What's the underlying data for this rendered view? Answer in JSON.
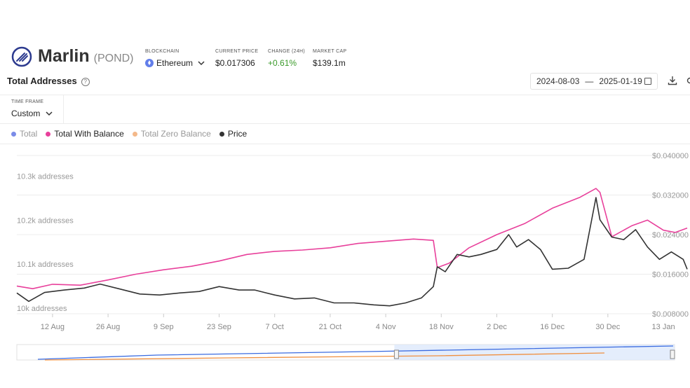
{
  "header": {
    "name": "Marlin",
    "symbol": "(POND)",
    "blockchain_label": "BLOCKCHAIN",
    "blockchain_value": "Ethereum",
    "price_label": "CURRENT PRICE",
    "price_value": "$0.017306",
    "change_label": "CHANGE (24H)",
    "change_value": "+0.61%",
    "mcap_label": "MARKET CAP",
    "mcap_value": "$139.1m"
  },
  "section": {
    "title": "Total Addresses",
    "date_from": "2024-08-03",
    "date_sep": "—",
    "date_to": "2025-01-19"
  },
  "timeframe": {
    "label": "TIME FRAME",
    "value": "Custom"
  },
  "legend": [
    {
      "name": "Total",
      "color": "#7b8ce8",
      "muted": true
    },
    {
      "name": "Total With Balance",
      "color": "#e8409b",
      "muted": false
    },
    {
      "name": "Total Zero Balance",
      "color": "#f4b98a",
      "muted": true
    },
    {
      "name": "Price",
      "color": "#333333",
      "muted": false
    }
  ],
  "chart_data": {
    "type": "line",
    "x_tick_labels": [
      "12 Aug",
      "26 Aug",
      "9 Sep",
      "23 Sep",
      "7 Oct",
      "21 Oct",
      "4 Nov",
      "18 Nov",
      "2 Dec",
      "16 Dec",
      "30 Dec",
      "13 Jan"
    ],
    "left_axis": {
      "tick_labels": [
        "10k addresses",
        "10.1k addresses",
        "10.2k addresses",
        "10.3k addresses"
      ],
      "values": [
        10000,
        10100,
        10200,
        10300
      ],
      "range": [
        10000,
        10360
      ]
    },
    "right_axis": {
      "tick_labels": [
        "$0.008000",
        "$0.016000",
        "$0.024000",
        "$0.032000",
        "$0.040000"
      ],
      "values": [
        0.008,
        0.016,
        0.024,
        0.032,
        0.04
      ],
      "range": [
        0.008,
        0.04
      ]
    },
    "series": [
      {
        "name": "Total With Balance",
        "axis": "left",
        "color": "#e8409b",
        "dates": [
          "2024-08-03",
          "2024-08-07",
          "2024-08-12",
          "2024-08-19",
          "2024-08-26",
          "2024-09-02",
          "2024-09-09",
          "2024-09-16",
          "2024-09-23",
          "2024-09-30",
          "2024-10-07",
          "2024-10-14",
          "2024-10-21",
          "2024-10-28",
          "2024-11-04",
          "2024-11-11",
          "2024-11-16",
          "2024-11-17",
          "2024-11-20",
          "2024-11-25",
          "2024-12-02",
          "2024-12-09",
          "2024-12-16",
          "2024-12-23",
          "2024-12-27",
          "2024-12-28",
          "2024-12-31",
          "2025-01-05",
          "2025-01-09",
          "2025-01-13",
          "2025-01-16",
          "2025-01-19"
        ],
        "values": [
          10063,
          10057,
          10067,
          10065,
          10077,
          10090,
          10100,
          10108,
          10120,
          10135,
          10142,
          10145,
          10150,
          10160,
          10165,
          10170,
          10167,
          10105,
          10115,
          10150,
          10180,
          10205,
          10240,
          10265,
          10285,
          10276,
          10175,
          10200,
          10213,
          10190,
          10185,
          10195
        ]
      },
      {
        "name": "Price",
        "axis": "right",
        "color": "#333333",
        "dates": [
          "2024-08-03",
          "2024-08-06",
          "2024-08-10",
          "2024-08-15",
          "2024-08-20",
          "2024-08-24",
          "2024-08-29",
          "2024-09-03",
          "2024-09-08",
          "2024-09-13",
          "2024-09-18",
          "2024-09-23",
          "2024-09-28",
          "2024-10-02",
          "2024-10-07",
          "2024-10-12",
          "2024-10-17",
          "2024-10-22",
          "2024-10-27",
          "2024-11-01",
          "2024-11-05",
          "2024-11-09",
          "2024-11-13",
          "2024-11-16",
          "2024-11-17",
          "2024-11-19",
          "2024-11-22",
          "2024-11-25",
          "2024-11-28",
          "2024-12-02",
          "2024-12-05",
          "2024-12-07",
          "2024-12-10",
          "2024-12-13",
          "2024-12-16",
          "2024-12-20",
          "2024-12-24",
          "2024-12-27",
          "2024-12-28",
          "2024-12-31",
          "2025-01-03",
          "2025-01-06",
          "2025-01-09",
          "2025-01-12",
          "2025-01-15",
          "2025-01-18",
          "2025-01-19"
        ],
        "values": [
          0.0122,
          0.0105,
          0.0123,
          0.0128,
          0.0132,
          0.014,
          0.013,
          0.012,
          0.0118,
          0.0122,
          0.0125,
          0.0135,
          0.0128,
          0.0128,
          0.0118,
          0.011,
          0.0112,
          0.0102,
          0.0102,
          0.0098,
          0.0096,
          0.0102,
          0.0112,
          0.0135,
          0.0175,
          0.0165,
          0.02,
          0.0195,
          0.02,
          0.021,
          0.024,
          0.0215,
          0.023,
          0.021,
          0.017,
          0.0172,
          0.019,
          0.0315,
          0.027,
          0.0235,
          0.023,
          0.025,
          0.0215,
          0.019,
          0.0205,
          0.019,
          0.017
        ]
      }
    ],
    "navigator": {
      "x_start": "2024-01-01",
      "x_end": "2025-01-19",
      "selection": [
        "2024-08-03",
        "2025-01-19"
      ],
      "series": [
        {
          "name": "Total",
          "color": "#3a6be0"
        },
        {
          "name": "Total Zero Balance",
          "color": "#f09040"
        }
      ]
    }
  }
}
